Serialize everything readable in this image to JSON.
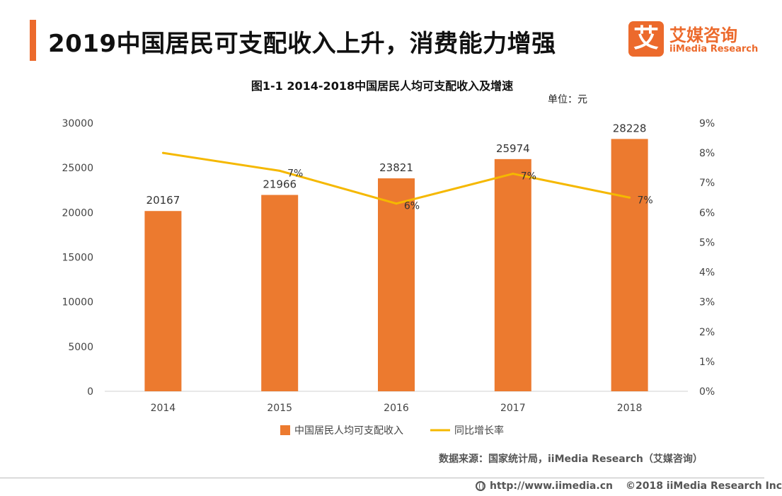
{
  "header": {
    "title": "2019中国居民可支配收入上升，消费能力增强",
    "brand_mark": "艾",
    "brand_cn": "艾媒咨询",
    "brand_en": "iiMedia Research"
  },
  "chart_data": {
    "type": "bar",
    "title": "图1-1 2014-2018中国居民人均可支配收入及增速",
    "unit": "单位：元",
    "categories": [
      "2014",
      "2015",
      "2016",
      "2017",
      "2018"
    ],
    "series": [
      {
        "name": "中国居民人均可支配收入",
        "type": "bar",
        "axis": "left",
        "values": [
          20167,
          21966,
          23821,
          25974,
          28228
        ],
        "labels": [
          "20167",
          "21966",
          "23821",
          "25974",
          "28228"
        ],
        "color": "#ec7a2f"
      },
      {
        "name": "同比增长率",
        "type": "line",
        "axis": "right",
        "values": [
          0.08,
          0.074,
          0.063,
          0.073,
          0.065
        ],
        "labels": [
          "",
          "7%",
          "6%",
          "7%",
          "7%"
        ],
        "color": "#f5b800"
      }
    ],
    "y_left": {
      "min": 0,
      "max": 30000,
      "ticks": [
        "0",
        "5000",
        "10000",
        "15000",
        "20000",
        "25000",
        "30000"
      ]
    },
    "y_right": {
      "min": 0,
      "max": 0.09,
      "ticks": [
        "0%",
        "1%",
        "2%",
        "3%",
        "4%",
        "5%",
        "6%",
        "7%",
        "8%",
        "9%"
      ]
    },
    "grid": false,
    "legend_position": "bottom"
  },
  "source": "数据来源：国家统计局，iiMedia Research（艾媒咨询）",
  "footer": {
    "url": "http://www.iimedia.cn",
    "copyright": "©2018  iiMedia Research  Inc"
  }
}
